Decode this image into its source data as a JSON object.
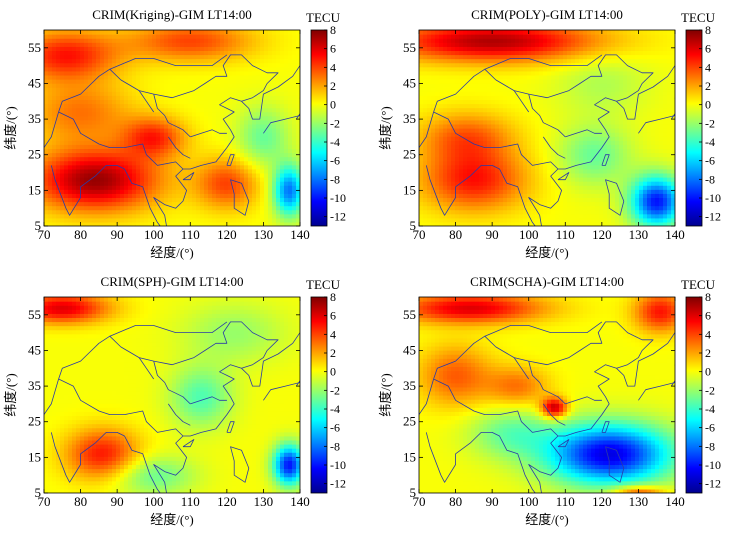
{
  "panels": [
    {
      "title": "CRIM(Kriging)-GIM LT14:00",
      "blobs": [
        {
          "lon": 84,
          "lat": 18,
          "value": 7.5,
          "sx": 12,
          "sy": 6
        },
        {
          "lon": 100,
          "lat": 30,
          "value": 4.5,
          "sx": 6,
          "sy": 4
        },
        {
          "lon": 80,
          "lat": 37,
          "value": 3,
          "sx": 10,
          "sy": 6
        },
        {
          "lon": 120,
          "lat": 17,
          "value": 4,
          "sx": 6,
          "sy": 5
        },
        {
          "lon": 76,
          "lat": 53,
          "value": 5,
          "sx": 10,
          "sy": 5
        },
        {
          "lon": 110,
          "lat": 57,
          "value": 4,
          "sx": 12,
          "sy": 4
        },
        {
          "lon": 137,
          "lat": 15,
          "value": -8,
          "sx": 3,
          "sy": 5
        },
        {
          "lon": 130,
          "lat": 30,
          "value": -3,
          "sx": 5,
          "sy": 6
        }
      ]
    },
    {
      "title": "CRIM(POLY)-GIM LT14:00",
      "blobs": [
        {
          "lon": 90,
          "lat": 57,
          "value": 7,
          "sx": 20,
          "sy": 4
        },
        {
          "lon": 85,
          "lat": 18,
          "value": 5,
          "sx": 10,
          "sy": 6
        },
        {
          "lon": 83,
          "lat": 30,
          "value": 3.5,
          "sx": 9,
          "sy": 5
        },
        {
          "lon": 135,
          "lat": 12,
          "value": -10,
          "sx": 5,
          "sy": 5
        },
        {
          "lon": 118,
          "lat": 25,
          "value": -3,
          "sx": 7,
          "sy": 6
        },
        {
          "lon": 120,
          "lat": 45,
          "value": -1.5,
          "sx": 9,
          "sy": 6
        }
      ]
    },
    {
      "title": "CRIM(SPH)-GIM LT14:00",
      "blobs": [
        {
          "lon": 86,
          "lat": 16,
          "value": 5,
          "sx": 7,
          "sy": 5
        },
        {
          "lon": 75,
          "lat": 57,
          "value": 6,
          "sx": 9,
          "sy": 3
        },
        {
          "lon": 137,
          "lat": 13,
          "value": -10,
          "sx": 3,
          "sy": 4
        },
        {
          "lon": 113,
          "lat": 32,
          "value": -3.5,
          "sx": 6,
          "sy": 6
        },
        {
          "lon": 122,
          "lat": 50,
          "value": -2,
          "sx": 10,
          "sy": 6
        },
        {
          "lon": 100,
          "lat": 10,
          "value": -3,
          "sx": 8,
          "sy": 4
        }
      ]
    },
    {
      "title": "CRIM(SCHA)-GIM LT14:00",
      "blobs": [
        {
          "lon": 84,
          "lat": 57,
          "value": 6,
          "sx": 14,
          "sy": 3
        },
        {
          "lon": 80,
          "lat": 38,
          "value": 3.5,
          "sx": 7,
          "sy": 6
        },
        {
          "lon": 107,
          "lat": 29,
          "value": 7,
          "sx": 2.5,
          "sy": 2
        },
        {
          "lon": 97,
          "lat": 35,
          "value": 3,
          "sx": 6,
          "sy": 4
        },
        {
          "lon": 122,
          "lat": 16,
          "value": -11,
          "sx": 12,
          "sy": 6
        },
        {
          "lon": 136,
          "lat": 56,
          "value": 5,
          "sx": 5,
          "sy": 4
        },
        {
          "lon": 95,
          "lat": 22,
          "value": -3,
          "sx": 8,
          "sy": 5
        },
        {
          "lon": 130,
          "lat": 5,
          "value": 5,
          "sx": 5,
          "sy": 1.5
        }
      ]
    }
  ],
  "chart_data": {
    "type": "heatmap",
    "xlabel": "经度/(°)",
    "ylabel": "纬度/(°)",
    "xlim": [
      70,
      140
    ],
    "ylim": [
      5,
      60
    ],
    "xticks": [
      70,
      80,
      90,
      100,
      110,
      120,
      130,
      140
    ],
    "yticks": [
      5,
      15,
      25,
      35,
      45,
      55
    ],
    "colorbar": {
      "title": "TECU",
      "min": -13,
      "max": 8,
      "ticks": [
        8,
        6,
        4,
        2,
        0,
        -2,
        -4,
        -6,
        -8,
        -10,
        -12
      ],
      "colors": [
        "#00008f",
        "#0000ff",
        "#0080ff",
        "#00ffff",
        "#80ff80",
        "#ffff00",
        "#ff8000",
        "#ff0000",
        "#800000"
      ]
    },
    "background_value": 0
  }
}
